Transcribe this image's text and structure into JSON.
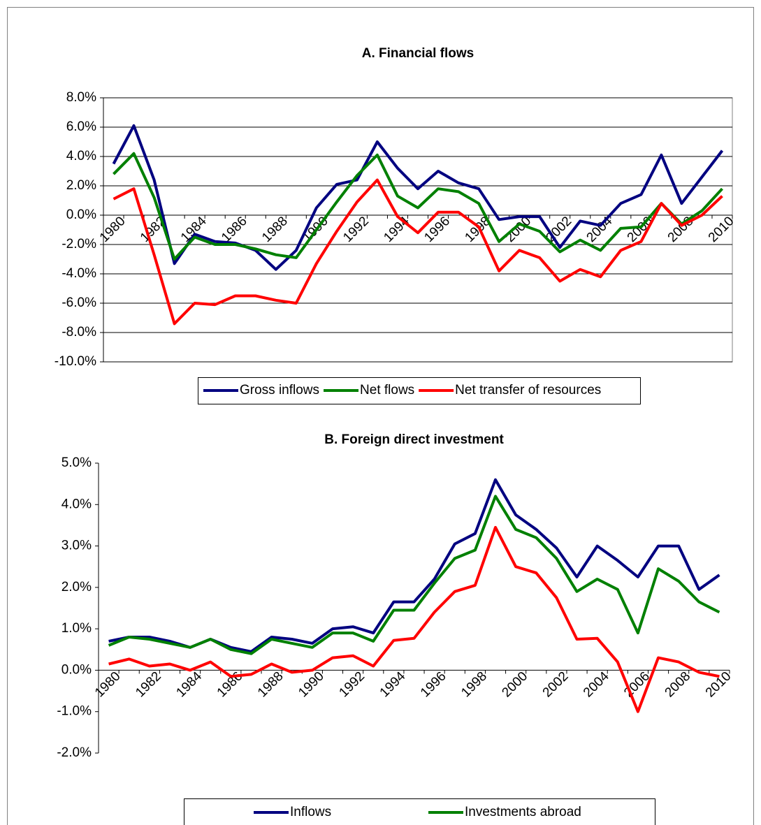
{
  "chart_data": [
    {
      "type": "line",
      "title": "A. Financial flows",
      "categories": [
        "1980",
        null,
        "1982",
        null,
        "1984",
        null,
        "1986",
        null,
        "1988",
        null,
        "1990",
        null,
        "1992",
        null,
        "1994",
        null,
        "1996",
        null,
        "1998",
        null,
        "2000",
        null,
        "2002",
        null,
        "2004",
        null,
        "2006",
        null,
        "2008",
        null,
        "2010"
      ],
      "series": [
        {
          "name": "Gross inflows",
          "color": "#000080",
          "values": [
            3.5,
            6.1,
            2.4,
            -3.3,
            -1.3,
            -1.8,
            -1.9,
            -2.4,
            -3.7,
            -2.4,
            0.5,
            2.1,
            2.4,
            5.0,
            3.2,
            1.8,
            3.0,
            2.2,
            1.8,
            -0.3,
            -0.1,
            -0.1,
            -2.2,
            -0.4,
            -0.7,
            0.8,
            1.4,
            4.1,
            0.8,
            2.6,
            4.4
          ]
        },
        {
          "name": "Net flows",
          "color": "#008000",
          "values": [
            2.8,
            4.2,
            1.2,
            -3.0,
            -1.5,
            -2.0,
            -2.0,
            -2.3,
            -2.7,
            -2.9,
            -1.0,
            0.9,
            2.7,
            4.1,
            1.3,
            0.5,
            1.8,
            1.6,
            0.8,
            -1.8,
            -0.6,
            -1.1,
            -2.5,
            -1.7,
            -2.4,
            -0.9,
            -0.8,
            0.8,
            -0.6,
            0.3,
            1.8
          ]
        },
        {
          "name": "Net transfer of resources",
          "color": "#ff0000",
          "values": [
            1.1,
            1.8,
            -2.7,
            -7.4,
            -6.0,
            -6.1,
            -5.5,
            -5.5,
            -5.8,
            -6.0,
            -3.3,
            -1.1,
            0.9,
            2.4,
            -0.1,
            -1.2,
            0.2,
            0.2,
            -0.8,
            -3.8,
            -2.4,
            -2.9,
            -4.5,
            -3.7,
            -4.2,
            -2.4,
            -1.8,
            0.8,
            -0.7,
            0.0,
            1.3
          ]
        }
      ],
      "ylim": [
        -10,
        8
      ],
      "yticks": [
        {
          "value": -10,
          "label": "-10.0%"
        },
        {
          "value": -8,
          "label": "-8.0%"
        },
        {
          "value": -6,
          "label": "-6.0%"
        },
        {
          "value": -4,
          "label": "-4.0%"
        },
        {
          "value": -2,
          "label": "-2.0%"
        },
        {
          "value": 0,
          "label": "0.0%"
        },
        {
          "value": 2,
          "label": "2.0%"
        },
        {
          "value": 4,
          "label": "4.0%"
        },
        {
          "value": 6,
          "label": "6.0%"
        },
        {
          "value": 8,
          "label": "8.0%"
        }
      ],
      "grid": true,
      "legend": "bottom"
    },
    {
      "type": "line",
      "title": "B. Foreign direct investment",
      "categories": [
        "1980",
        null,
        "1982",
        null,
        "1984",
        null,
        "1986",
        null,
        "1988",
        null,
        "1990",
        null,
        "1992",
        null,
        "1994",
        null,
        "1996",
        null,
        "1998",
        null,
        "2000",
        null,
        "2002",
        null,
        "2004",
        null,
        "2006",
        null,
        "2008",
        null,
        "2010"
      ],
      "series": [
        {
          "name": "Inflows",
          "color": "#000080",
          "values": [
            0.7,
            0.8,
            0.8,
            0.7,
            0.55,
            0.75,
            0.55,
            0.45,
            0.8,
            0.75,
            0.65,
            1.0,
            1.05,
            0.9,
            1.65,
            1.65,
            2.2,
            3.05,
            3.3,
            4.6,
            3.75,
            3.4,
            2.95,
            2.25,
            3.0,
            2.65,
            2.25,
            3.0,
            3.0,
            1.95,
            2.3
          ]
        },
        {
          "name": "Investments abroad",
          "color": "#008000",
          "values": [
            0.6,
            0.8,
            0.75,
            0.65,
            0.55,
            0.75,
            0.5,
            0.4,
            0.75,
            0.65,
            0.55,
            0.9,
            0.9,
            0.7,
            1.45,
            1.45,
            2.1,
            2.7,
            2.9,
            4.2,
            3.4,
            3.2,
            2.7,
            1.9,
            2.2,
            1.95,
            0.9,
            2.45,
            2.15,
            1.65,
            1.4
          ]
        },
        {
          "color": "#ff0000",
          "values": [
            0.15,
            0.27,
            0.1,
            0.15,
            0.0,
            0.2,
            -0.15,
            -0.1,
            0.15,
            -0.05,
            0.0,
            0.3,
            0.35,
            0.1,
            0.72,
            0.77,
            1.4,
            1.9,
            2.05,
            3.45,
            2.5,
            2.35,
            1.75,
            0.75,
            0.77,
            0.2,
            -1.0,
            0.3,
            0.2,
            -0.05,
            -0.15
          ]
        }
      ],
      "ylim": [
        -2,
        5
      ],
      "yticks": [
        {
          "value": -2,
          "label": "-2.0%"
        },
        {
          "value": -1,
          "label": "-1.0%"
        },
        {
          "value": 0,
          "label": "0.0%"
        },
        {
          "value": 1,
          "label": "1.0%"
        },
        {
          "value": 2,
          "label": "2.0%"
        },
        {
          "value": 3,
          "label": "3.0%"
        },
        {
          "value": 4,
          "label": "4.0%"
        },
        {
          "value": 5,
          "label": "5.0%"
        }
      ],
      "grid": false,
      "legend": "bottom"
    }
  ]
}
